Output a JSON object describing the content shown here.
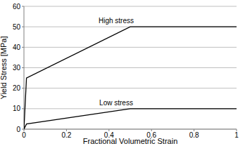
{
  "chart_data": {
    "type": "line",
    "x_label": "Fractional Volumetric Strain",
    "y_label": "Yield Stress [MPa]",
    "x": [
      0,
      0.012,
      0.5,
      1
    ],
    "series": [
      {
        "name": "High stress",
        "color": "#000000",
        "values": [
          0,
          25,
          50,
          50
        ]
      },
      {
        "name": "Low stress",
        "color": "#000000",
        "values": [
          0,
          2.5,
          10,
          10
        ]
      }
    ],
    "xlim": [
      0,
      1
    ],
    "xticks": [
      0,
      0.2,
      0.4,
      0.6,
      0.8,
      1
    ],
    "ylim": [
      0,
      60
    ],
    "yticks": [
      0,
      10,
      20,
      30,
      40,
      50,
      60
    ],
    "grid": true
  }
}
